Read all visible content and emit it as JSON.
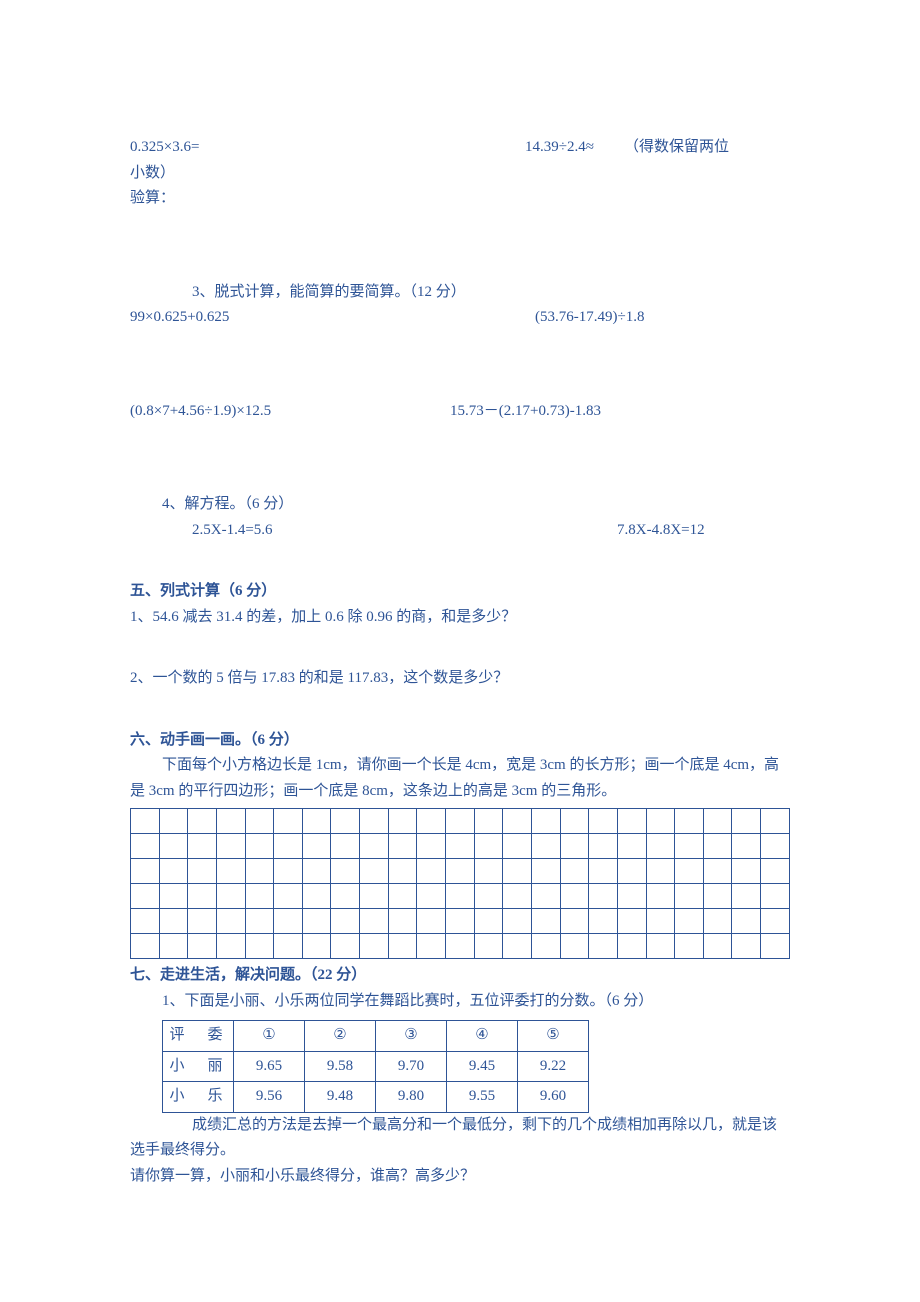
{
  "s4q2": {
    "left": "0.325×3.6=",
    "right_expr": "14.39÷2.4≈",
    "right_note": "（得数保留两位",
    "right_note2": "小数）",
    "verify": "验算："
  },
  "s4q3": {
    "title": "3、脱式计算，能简算的要简算。（12 分）",
    "r1c1": "99×0.625+0.625",
    "r1c2": "(53.76-17.49)÷1.8",
    "r2c1": "(0.8×7+4.56÷1.9)×12.5",
    "r2c2": "15.73－(2.17+0.73)-1.83"
  },
  "s4q4": {
    "title": "4、解方程。（6 分）",
    "c1": "2.5X-1.4=5.6",
    "c2": "7.8X-4.8X=12"
  },
  "s5": {
    "heading": "五、列式计算（6 分）",
    "q1": "1、54.6 减去 31.4 的差，加上 0.6 除 0.96 的商，和是多少？",
    "q2": "2、一个数的 5 倍与 17.83 的和是 117.83，这个数是多少？"
  },
  "s6": {
    "heading": "六、动手画一画。（6 分）",
    "desc_l1": "下面每个小方格边长是 1cm，请你画一个长是 4cm，宽是 3cm 的长方形；画一个底是 4cm，高",
    "desc_l2": "是 3cm 的平行四边形；画一个底是 8cm，这条边上的高是 3cm 的三角形。",
    "grid": {
      "rows": 6,
      "cols": 23
    }
  },
  "s7": {
    "heading": "七、走进生活，解决问题。（22 分）",
    "q1_title": "1、下面是小丽、小乐两位同学在舞蹈比赛时，五位评委打的分数。（6 分）",
    "table": {
      "header": [
        "评　委",
        "①",
        "②",
        "③",
        "④",
        "⑤"
      ],
      "rows": [
        [
          "小　丽",
          "9.65",
          "9.58",
          "9.70",
          "9.45",
          "9.22"
        ],
        [
          "小　乐",
          "9.56",
          "9.48",
          "9.80",
          "9.55",
          "9.60"
        ]
      ]
    },
    "note_l1": "成绩汇总的方法是去掉一个最高分和一个最低分，剩下的几个成绩相加再除以几，就是该",
    "note_l2": "选手最终得分。",
    "ask": "请你算一算，小丽和小乐最终得分，谁高？高多少？"
  }
}
